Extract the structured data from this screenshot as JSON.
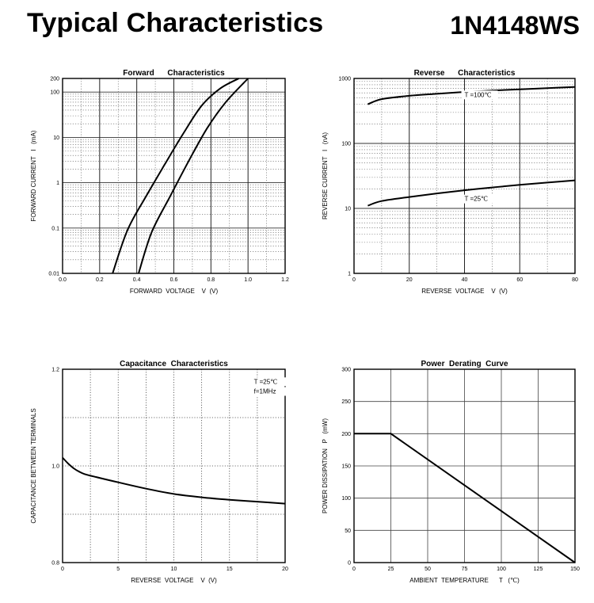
{
  "header": {
    "title": "Typical  Characteristics",
    "part_number": "1N4148WS"
  },
  "chart_data": [
    {
      "id": "forward",
      "type": "line",
      "title": "Forward      Characteristics",
      "xlabel": "FORWARD  VOLTAGE    V  (V)",
      "ylabel": "FORWARD CURRENT   I   (mA)",
      "xscale": "linear",
      "yscale": "log",
      "xlim": [
        0,
        1.2
      ],
      "ylim": [
        0.01,
        200
      ],
      "xticks": [
        0,
        0.2,
        0.4,
        0.6,
        0.8,
        1.0,
        1.2
      ],
      "xtick_labels": [
        "0.0",
        "0.2",
        "0.4",
        "0.6",
        "0.8",
        "1.0",
        "1.2"
      ],
      "yticks": [
        0.01,
        0.1,
        1,
        10,
        100,
        200
      ],
      "ytick_labels": [
        "0.01",
        "0.1",
        "1",
        "10",
        "100",
        "200"
      ],
      "grid": true,
      "series": [
        {
          "x": [
            0.27,
            0.35,
            0.45,
            0.55,
            0.65,
            0.75,
            0.85,
            0.95
          ],
          "y": [
            0.01,
            0.09,
            0.5,
            2.5,
            12,
            50,
            120,
            200
          ]
        },
        {
          "x": [
            0.41,
            0.48,
            0.58,
            0.68,
            0.78,
            0.88,
            1.0
          ],
          "y": [
            0.01,
            0.08,
            0.5,
            3,
            16,
            60,
            200
          ]
        }
      ],
      "annotations": []
    },
    {
      "id": "reverse",
      "type": "line",
      "title": "Reverse      Characteristics",
      "xlabel": "REVERSE  VOLTAGE    V  (V)",
      "ylabel": "REVERSE CURRENT   I   (nA)",
      "xscale": "linear",
      "yscale": "log",
      "xlim": [
        0,
        80
      ],
      "ylim": [
        1,
        1000
      ],
      "xticks": [
        0,
        20,
        40,
        60,
        80
      ],
      "xtick_labels": [
        "0",
        "20",
        "40",
        "60",
        "80"
      ],
      "yticks": [
        1,
        10,
        100,
        1000
      ],
      "ytick_labels": [
        "1",
        "10",
        "100",
        "1000"
      ],
      "grid": true,
      "series": [
        {
          "x": [
            5,
            10,
            20,
            30,
            40,
            50,
            60,
            70,
            80
          ],
          "y": [
            400,
            480,
            540,
            580,
            620,
            650,
            680,
            710,
            740
          ]
        },
        {
          "x": [
            5,
            10,
            20,
            30,
            40,
            50,
            60,
            70,
            80
          ],
          "y": [
            11,
            13,
            15,
            17,
            19,
            21,
            23,
            25,
            27
          ]
        }
      ],
      "annotations": [
        {
          "text": "T =100℃",
          "x": 40,
          "y": 520
        },
        {
          "text": "T =25℃",
          "x": 40,
          "y": 13
        }
      ]
    },
    {
      "id": "capacitance",
      "type": "line",
      "title": "Capacitance  Characteristics",
      "xlabel": "REVERSE  VOLTAGE    V  (V)",
      "ylabel": "CAPACITANCE BETWEEN TERMINALS",
      "xscale": "linear",
      "yscale": "linear",
      "xlim": [
        0,
        20
      ],
      "ylim": [
        0.8,
        1.2
      ],
      "xticks": [
        0,
        5,
        10,
        15,
        20
      ],
      "xtick_labels": [
        "0",
        "5",
        "10",
        "15",
        "20"
      ],
      "yticks": [
        0.8,
        1.0,
        1.2
      ],
      "ytick_labels": [
        "0.8",
        "1.0",
        "1.2"
      ],
      "grid": true,
      "series": [
        {
          "x": [
            0,
            0.5,
            1,
            1.5,
            2,
            3,
            5,
            7.5,
            10,
            12.5,
            15,
            17.5,
            20
          ],
          "y": [
            1.017,
            1.005,
            0.995,
            0.988,
            0.983,
            0.977,
            0.966,
            0.953,
            0.942,
            0.935,
            0.93,
            0.926,
            0.922
          ]
        }
      ],
      "annotations": [
        {
          "text": "T =25℃",
          "x": 17.2,
          "y": 1.17
        },
        {
          "text": "f=1MHz",
          "x": 17.2,
          "y": 1.15
        }
      ]
    },
    {
      "id": "derating",
      "type": "line",
      "title": "Power  Derating  Curve",
      "xlabel": "AMBIENT  TEMPERATURE      T   (℃)",
      "ylabel": "POWER DISSIPATION   P   (mW)",
      "xscale": "linear",
      "yscale": "linear",
      "xlim": [
        0,
        150
      ],
      "ylim": [
        0,
        300
      ],
      "xticks": [
        0,
        25,
        50,
        75,
        100,
        125,
        150
      ],
      "xtick_labels": [
        "0",
        "25",
        "50",
        "75",
        "100",
        "125",
        "150"
      ],
      "yticks": [
        0,
        50,
        100,
        150,
        200,
        250,
        300
      ],
      "ytick_labels": [
        "0",
        "50",
        "100",
        "150",
        "200",
        "250",
        "300"
      ],
      "grid": true,
      "series": [
        {
          "x": [
            0,
            25,
            150
          ],
          "y": [
            200,
            200,
            0
          ]
        }
      ],
      "annotations": []
    }
  ]
}
